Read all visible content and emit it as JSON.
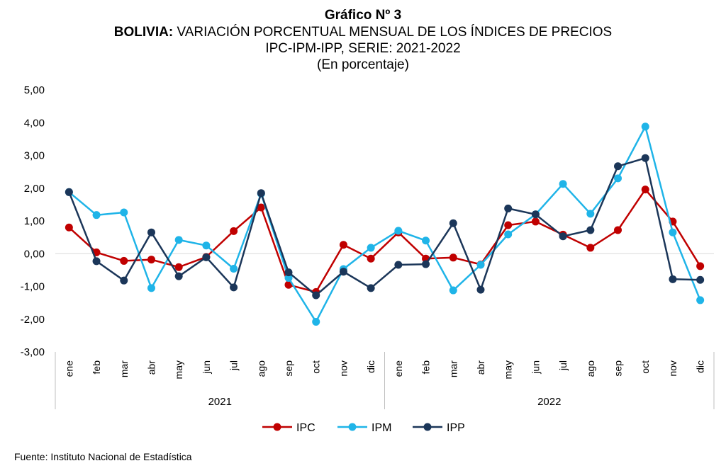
{
  "titles": {
    "main": "Gráfico Nº 3",
    "subtitle_bold": "BOLIVIA:",
    "subtitle_rest": " VARIACIÓN PORCENTUAL MENSUAL DE LOS ÍNDICES DE PRECIOS",
    "subtitle2": "IPC-IPM-IPP, SERIE: 2021-2022",
    "subtitle3": "(En porcentaje)"
  },
  "source": "Fuente: Instituto Nacional de Estadística",
  "chart_data": {
    "type": "line",
    "categories": [
      "ene",
      "feb",
      "mar",
      "abr",
      "may",
      "jun",
      "jul",
      "ago",
      "sep",
      "oct",
      "nov",
      "dic",
      "ene",
      "feb",
      "mar",
      "abr",
      "may",
      "jun",
      "jul",
      "ago",
      "sep",
      "oct",
      "nov",
      "dic"
    ],
    "groups": [
      {
        "label": "2021",
        "count": 12
      },
      {
        "label": "2022",
        "count": 12
      }
    ],
    "yticks": [
      "5,00",
      "4,00",
      "3,00",
      "2,00",
      "1,00",
      "0,00",
      "-1,00",
      "-2,00",
      "-3,00"
    ],
    "ylim": [
      -3,
      5
    ],
    "legend_position": "bottom",
    "series": [
      {
        "name": "IPC",
        "color": "#c00000",
        "values": [
          0.8,
          0.04,
          -0.22,
          -0.18,
          -0.41,
          -0.1,
          0.69,
          1.41,
          -0.95,
          -1.17,
          0.27,
          -0.15,
          0.65,
          -0.15,
          -0.12,
          -0.33,
          0.87,
          0.98,
          0.58,
          0.18,
          0.72,
          1.96,
          0.98,
          -0.38
        ]
      },
      {
        "name": "IPM",
        "color": "#1fb4e8",
        "values": [
          1.88,
          1.18,
          1.26,
          -1.05,
          0.42,
          0.25,
          -0.46,
          1.83,
          -0.74,
          -2.08,
          -0.47,
          0.18,
          0.7,
          0.4,
          -1.12,
          -0.34,
          0.59,
          1.2,
          2.13,
          1.22,
          2.3,
          3.88,
          0.65,
          -1.42
        ]
      },
      {
        "name": "IPP",
        "color": "#1b3659",
        "values": [
          1.88,
          -0.23,
          -0.82,
          0.65,
          -0.69,
          -0.11,
          -1.03,
          1.85,
          -0.57,
          -1.27,
          -0.55,
          -1.05,
          -0.34,
          -0.32,
          0.93,
          -1.1,
          1.38,
          1.2,
          0.53,
          0.72,
          2.67,
          2.92,
          -0.78,
          -0.8
        ]
      }
    ]
  }
}
